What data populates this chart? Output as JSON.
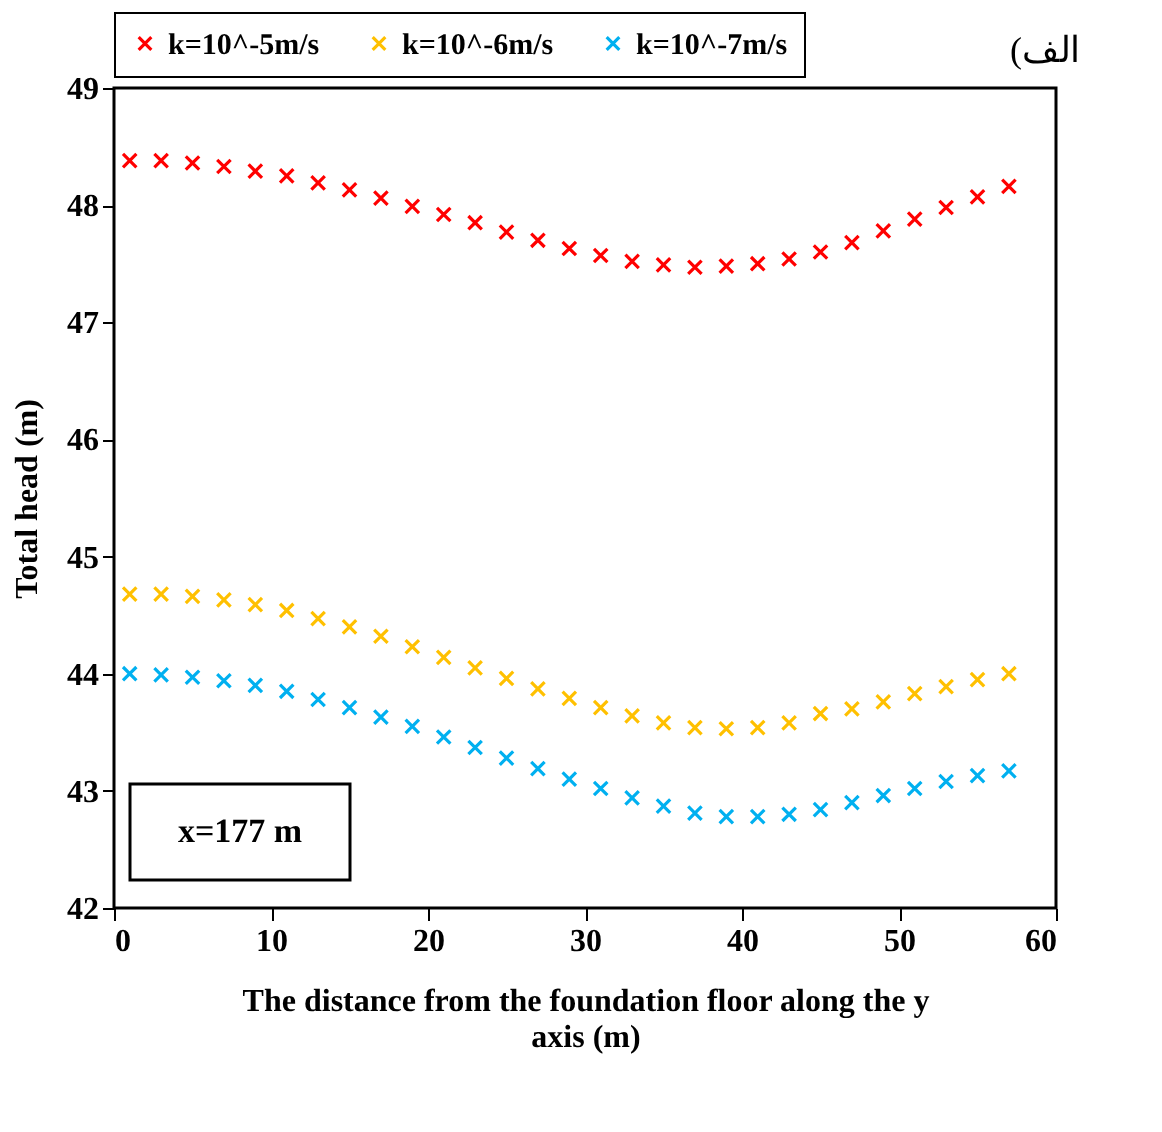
{
  "chart_data": {
    "type": "scatter",
    "xlabel": "The distance from the foundation floor along the y axis (m)",
    "ylabel": "Total head (m)",
    "x": [
      1,
      3,
      5,
      7,
      9,
      11,
      13,
      15,
      17,
      19,
      21,
      23,
      25,
      27,
      29,
      31,
      33,
      35,
      37,
      39,
      41,
      43,
      45,
      47,
      49,
      51,
      53,
      55,
      57
    ],
    "series": [
      {
        "name": "k=10^-5m/s",
        "color": "#ff0000",
        "values": [
          48.38,
          48.38,
          48.36,
          48.33,
          48.29,
          48.25,
          48.19,
          48.13,
          48.06,
          47.99,
          47.92,
          47.85,
          47.77,
          47.7,
          47.63,
          47.57,
          47.52,
          47.49,
          47.47,
          47.48,
          47.5,
          47.54,
          47.6,
          47.68,
          47.78,
          47.88,
          47.98,
          48.07,
          48.16
        ]
      },
      {
        "name": "k=10^-6m/s",
        "color": "#ffc000",
        "values": [
          44.68,
          44.68,
          44.66,
          44.63,
          44.59,
          44.54,
          44.47,
          44.4,
          44.32,
          44.23,
          44.14,
          44.05,
          43.96,
          43.87,
          43.79,
          43.71,
          43.64,
          43.58,
          43.54,
          43.53,
          43.54,
          43.58,
          43.66,
          43.7,
          43.76,
          43.83,
          43.89,
          43.95,
          44.0
        ]
      },
      {
        "name": "k=10^-7m/s",
        "color": "#00b0f0",
        "values": [
          44.0,
          43.99,
          43.97,
          43.94,
          43.9,
          43.85,
          43.78,
          43.71,
          43.63,
          43.55,
          43.46,
          43.37,
          43.28,
          43.19,
          43.1,
          43.02,
          42.94,
          42.87,
          42.81,
          42.78,
          42.78,
          42.8,
          42.84,
          42.9,
          42.96,
          43.02,
          43.08,
          43.13,
          43.17
        ]
      }
    ],
    "xlim": [
      0,
      60
    ],
    "xticks": [
      0,
      10,
      20,
      30,
      40,
      50,
      60
    ],
    "ylim": [
      42,
      49
    ],
    "yticks": [
      42,
      43,
      44,
      45,
      46,
      47,
      48,
      49
    ],
    "marker": "cross",
    "legend": "top",
    "grid": false,
    "annotations": [
      "x=177 m",
      "(الف"
    ]
  }
}
